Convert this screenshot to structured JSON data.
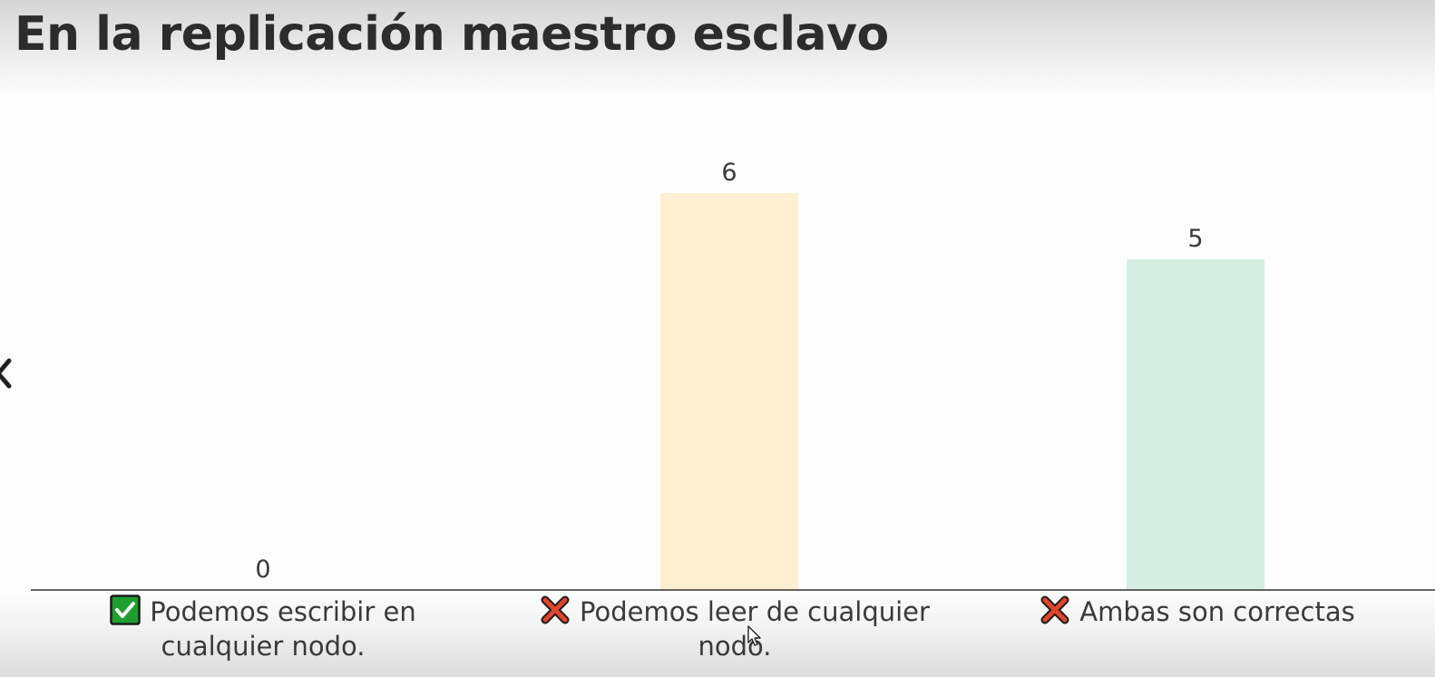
{
  "slide": {
    "title": "En la replicación maestro esclavo"
  },
  "options": [
    {
      "label": "Podemos escribir en cualquier nodo.",
      "correct": true,
      "icon": "check-icon"
    },
    {
      "label": "Podemos leer de cualquier nodo.",
      "correct": false,
      "icon": "cross-icon"
    },
    {
      "label": "Ambas son correctas",
      "correct": false,
      "icon": "cross-icon"
    }
  ],
  "colors": {
    "bar_1": "#fdf3dc",
    "bar_2": "#fdefd0",
    "bar_3": "#d4efe2",
    "check_bg": "#1e9e2f",
    "cross": "#e0452b"
  },
  "chart_data": {
    "type": "bar",
    "categories": [
      "Podemos escribir en cualquier nodo.",
      "Podemos leer de cualquier nodo.",
      "Ambas son correctas"
    ],
    "values": [
      0,
      6,
      5
    ],
    "data_labels": [
      "0",
      "6",
      "5"
    ],
    "title": "",
    "xlabel": "",
    "ylabel": "",
    "ylim": [
      0,
      6
    ],
    "grid": false,
    "legend": "none"
  }
}
